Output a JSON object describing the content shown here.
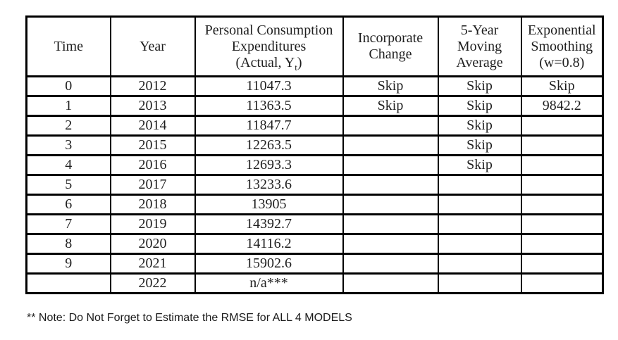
{
  "colors": {
    "background": "#ffffff",
    "table_border": "#000000",
    "text": "#1f1f1f"
  },
  "table": {
    "columns": [
      {
        "id": "time",
        "lines": [
          "Time"
        ]
      },
      {
        "id": "year",
        "lines": [
          "Year"
        ]
      },
      {
        "id": "pce",
        "lines": [
          "Personal Consumption",
          "Expenditures"
        ],
        "formula_prefix": "(Actual, Y",
        "formula_sub": "t",
        "formula_suffix": ")"
      },
      {
        "id": "incorporate-change",
        "lines": [
          "Incorporate",
          "Change"
        ]
      },
      {
        "id": "five-year-moving-average",
        "lines": [
          "5-Year",
          "Moving",
          "Average"
        ]
      },
      {
        "id": "exponential-smoothing",
        "lines": [
          "Exponential",
          "Smoothing",
          "(w=0.8)"
        ]
      }
    ],
    "rows": [
      [
        "0",
        "2012",
        "11047.3",
        "Skip",
        "Skip",
        "Skip"
      ],
      [
        "1",
        "2013",
        "11363.5",
        "Skip",
        "Skip",
        "9842.2"
      ],
      [
        "2",
        "2014",
        "11847.7",
        "",
        "Skip",
        ""
      ],
      [
        "3",
        "2015",
        "12263.5",
        "",
        "Skip",
        ""
      ],
      [
        "4",
        "2016",
        "12693.3",
        "",
        "Skip",
        ""
      ],
      [
        "5",
        "2017",
        "13233.6",
        "",
        "",
        ""
      ],
      [
        "6",
        "2018",
        "13905",
        "",
        "",
        ""
      ],
      [
        "7",
        "2019",
        "14392.7",
        "",
        "",
        ""
      ],
      [
        "8",
        "2020",
        "14116.2",
        "",
        "",
        ""
      ],
      [
        "9",
        "2021",
        "15902.6",
        "",
        "",
        ""
      ],
      [
        "",
        "2022",
        "n/a***",
        "",
        "",
        ""
      ]
    ]
  },
  "note": "** Note: Do Not Forget to Estimate the RMSE for ALL 4 MODELS"
}
